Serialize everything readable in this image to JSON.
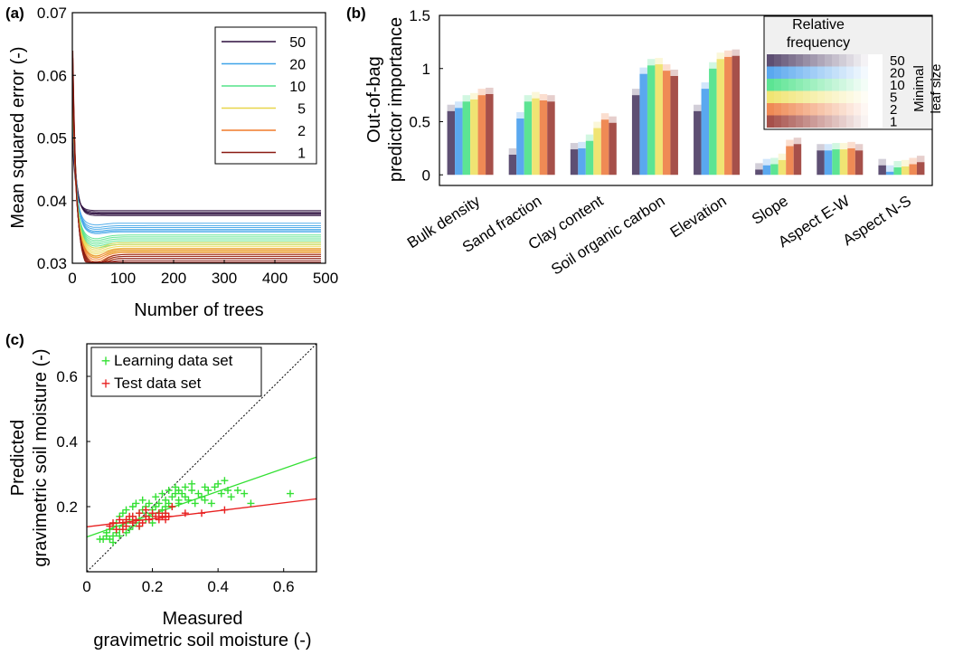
{
  "chart_data": [
    {
      "panel": "(a)",
      "type": "line",
      "xlabel": "Number of trees",
      "ylabel": "Mean squared error (-)",
      "xlim": [
        0,
        500
      ],
      "ylim": [
        0.03,
        0.07
      ],
      "xticks": [
        0,
        100,
        200,
        300,
        400,
        500
      ],
      "yticks": [
        0.03,
        0.04,
        0.05,
        0.06,
        0.07
      ],
      "ytick_labels": [
        "0.03",
        "0.04",
        "0.05",
        "0.06",
        "0.07"
      ],
      "legend_title": "",
      "legend": [
        "50",
        "20",
        "10",
        "5",
        "2",
        "1"
      ],
      "series": [
        {
          "name": "50",
          "color": "#2d0f3f",
          "start": 0.054,
          "plateau": [
            0.0376,
            0.0378,
            0.0379,
            0.038,
            0.0382,
            0.0384
          ]
        },
        {
          "name": "20",
          "color": "#3fa4e8",
          "start": 0.058,
          "plateau": [
            0.035,
            0.0352,
            0.0354,
            0.0357,
            0.036,
            0.0364
          ]
        },
        {
          "name": "10",
          "color": "#55e38a",
          "start": 0.06,
          "plateau": [
            0.033,
            0.0333,
            0.0336,
            0.0339,
            0.0342,
            0.0345
          ]
        },
        {
          "name": "5",
          "color": "#e8d64a",
          "start": 0.061,
          "plateau": [
            0.0318,
            0.0321,
            0.0324,
            0.0327,
            0.033,
            0.0333
          ]
        },
        {
          "name": "2",
          "color": "#f07a2a",
          "start": 0.062,
          "plateau": [
            0.0308,
            0.0311,
            0.0314,
            0.0317,
            0.032,
            0.0323
          ]
        },
        {
          "name": "1",
          "color": "#8a1a12",
          "start": 0.064,
          "plateau": [
            0.03,
            0.0302,
            0.0305,
            0.0308,
            0.0311,
            0.0314
          ]
        }
      ]
    },
    {
      "panel": "(b)",
      "type": "bar",
      "ylabel_lines": [
        "Out-of-bag",
        "predictor importance"
      ],
      "ylim": [
        -0.1,
        1.5
      ],
      "yticks": [
        0,
        0.5,
        1,
        1.5
      ],
      "ytick_labels": [
        "0",
        "0.5",
        "1",
        "1.5"
      ],
      "categories": [
        "Bulk density",
        "Sand fraction",
        "Clay content",
        "Soil organic carbon",
        "Elevation",
        "Slope",
        "Aspect E-W",
        "Aspect N-S"
      ],
      "series": [
        {
          "name": "50",
          "color": "#5e4f73",
          "values": [
            0.6,
            0.19,
            0.24,
            0.75,
            0.6,
            0.05,
            0.23,
            0.09
          ]
        },
        {
          "name": "20",
          "color": "#5aa8ef",
          "values": [
            0.63,
            0.53,
            0.25,
            0.95,
            0.81,
            0.09,
            0.23,
            0.03
          ]
        },
        {
          "name": "10",
          "color": "#5ce493",
          "values": [
            0.69,
            0.69,
            0.32,
            1.03,
            1.0,
            0.1,
            0.24,
            0.07
          ]
        },
        {
          "name": "5",
          "color": "#f0e473",
          "values": [
            0.71,
            0.72,
            0.44,
            1.04,
            1.09,
            0.14,
            0.24,
            0.08
          ]
        },
        {
          "name": "2",
          "color": "#ef8a55",
          "values": [
            0.75,
            0.7,
            0.52,
            0.98,
            1.11,
            0.27,
            0.25,
            0.1
          ]
        },
        {
          "name": "1",
          "color": "#a6504a",
          "values": [
            0.76,
            0.69,
            0.49,
            0.93,
            1.12,
            0.29,
            0.23,
            0.12
          ]
        }
      ],
      "legend_title_lines": [
        "Relative",
        "frequency"
      ],
      "legend_entries": [
        "50",
        "20",
        "10",
        "5",
        "2",
        "1"
      ],
      "legend_side_lines": [
        "Minimal",
        "leaf size"
      ]
    },
    {
      "panel": "(c)",
      "type": "scatter",
      "xlabel_lines": [
        "Measured",
        "gravimetric soil moisture (-)"
      ],
      "ylabel_lines": [
        "Predicted",
        "gravimetric soil moisture (-)"
      ],
      "xlim": [
        0,
        0.7
      ],
      "ylim": [
        0,
        0.7
      ],
      "xticks": [
        0,
        0.2,
        0.4,
        0.6
      ],
      "yticks": [
        0.2,
        0.4,
        0.6
      ],
      "xtick_labels": [
        "0",
        "0.2",
        "0.4",
        "0.6"
      ],
      "ytick_labels": [
        "0.2",
        "0.4",
        "0.6"
      ],
      "legend": [
        "Learning data set",
        "Test data set"
      ],
      "learning_color": "#33e033",
      "test_color": "#e82020",
      "learning_fit": [
        [
          0,
          0.107
        ],
        [
          0.7,
          0.352
        ]
      ],
      "test_fit": [
        [
          0,
          0.138
        ],
        [
          0.7,
          0.224
        ]
      ],
      "identity_line": [
        [
          0,
          0
        ],
        [
          0.7,
          0.7
        ]
      ],
      "learning_points": [
        [
          0.04,
          0.1
        ],
        [
          0.05,
          0.1
        ],
        [
          0.06,
          0.11
        ],
        [
          0.06,
          0.12
        ],
        [
          0.07,
          0.1
        ],
        [
          0.07,
          0.13
        ],
        [
          0.08,
          0.11
        ],
        [
          0.08,
          0.14
        ],
        [
          0.09,
          0.12
        ],
        [
          0.09,
          0.15
        ],
        [
          0.1,
          0.13
        ],
        [
          0.1,
          0.17
        ],
        [
          0.11,
          0.14
        ],
        [
          0.11,
          0.18
        ],
        [
          0.12,
          0.15
        ],
        [
          0.12,
          0.19
        ],
        [
          0.13,
          0.16
        ],
        [
          0.13,
          0.13
        ],
        [
          0.14,
          0.17
        ],
        [
          0.14,
          0.2
        ],
        [
          0.15,
          0.15
        ],
        [
          0.15,
          0.21
        ],
        [
          0.16,
          0.18
        ],
        [
          0.16,
          0.14
        ],
        [
          0.17,
          0.19
        ],
        [
          0.17,
          0.22
        ],
        [
          0.18,
          0.16
        ],
        [
          0.18,
          0.2
        ],
        [
          0.19,
          0.17
        ],
        [
          0.19,
          0.21
        ],
        [
          0.2,
          0.19
        ],
        [
          0.2,
          0.15
        ],
        [
          0.21,
          0.2
        ],
        [
          0.21,
          0.23
        ],
        [
          0.22,
          0.18
        ],
        [
          0.22,
          0.21
        ],
        [
          0.23,
          0.19
        ],
        [
          0.23,
          0.24
        ],
        [
          0.24,
          0.2
        ],
        [
          0.24,
          0.22
        ],
        [
          0.25,
          0.21
        ],
        [
          0.25,
          0.25
        ],
        [
          0.26,
          0.23
        ],
        [
          0.26,
          0.2
        ],
        [
          0.27,
          0.24
        ],
        [
          0.27,
          0.26
        ],
        [
          0.28,
          0.22
        ],
        [
          0.28,
          0.25
        ],
        [
          0.29,
          0.24
        ],
        [
          0.3,
          0.23
        ],
        [
          0.3,
          0.26
        ],
        [
          0.31,
          0.22
        ],
        [
          0.32,
          0.25
        ],
        [
          0.33,
          0.21
        ],
        [
          0.34,
          0.24
        ],
        [
          0.35,
          0.23
        ],
        [
          0.36,
          0.22
        ],
        [
          0.37,
          0.25
        ],
        [
          0.38,
          0.21
        ],
        [
          0.39,
          0.26
        ],
        [
          0.4,
          0.27
        ],
        [
          0.41,
          0.24
        ],
        [
          0.42,
          0.28
        ],
        [
          0.43,
          0.25
        ],
        [
          0.44,
          0.23
        ],
        [
          0.46,
          0.25
        ],
        [
          0.48,
          0.24
        ],
        [
          0.5,
          0.21
        ],
        [
          0.62,
          0.24
        ],
        [
          0.12,
          0.12
        ],
        [
          0.14,
          0.14
        ],
        [
          0.16,
          0.16
        ],
        [
          0.18,
          0.18
        ],
        [
          0.08,
          0.09
        ],
        [
          0.1,
          0.11
        ],
        [
          0.2,
          0.17
        ],
        [
          0.24,
          0.18
        ],
        [
          0.28,
          0.21
        ],
        [
          0.32,
          0.27
        ],
        [
          0.36,
          0.26
        ]
      ],
      "test_points": [
        [
          0.07,
          0.14
        ],
        [
          0.08,
          0.15
        ],
        [
          0.09,
          0.13
        ],
        [
          0.1,
          0.16
        ],
        [
          0.11,
          0.15
        ],
        [
          0.12,
          0.14
        ],
        [
          0.13,
          0.17
        ],
        [
          0.14,
          0.15
        ],
        [
          0.15,
          0.16
        ],
        [
          0.16,
          0.18
        ],
        [
          0.17,
          0.15
        ],
        [
          0.18,
          0.17
        ],
        [
          0.19,
          0.16
        ],
        [
          0.2,
          0.18
        ],
        [
          0.21,
          0.17
        ],
        [
          0.22,
          0.16
        ],
        [
          0.23,
          0.17
        ],
        [
          0.24,
          0.18
        ],
        [
          0.25,
          0.17
        ],
        [
          0.26,
          0.2
        ],
        [
          0.3,
          0.18
        ],
        [
          0.35,
          0.18
        ],
        [
          0.42,
          0.19
        ],
        [
          0.12,
          0.16
        ],
        [
          0.14,
          0.17
        ],
        [
          0.16,
          0.14
        ],
        [
          0.18,
          0.19
        ],
        [
          0.22,
          0.18
        ],
        [
          0.11,
          0.13
        ],
        [
          0.24,
          0.16
        ]
      ]
    }
  ]
}
